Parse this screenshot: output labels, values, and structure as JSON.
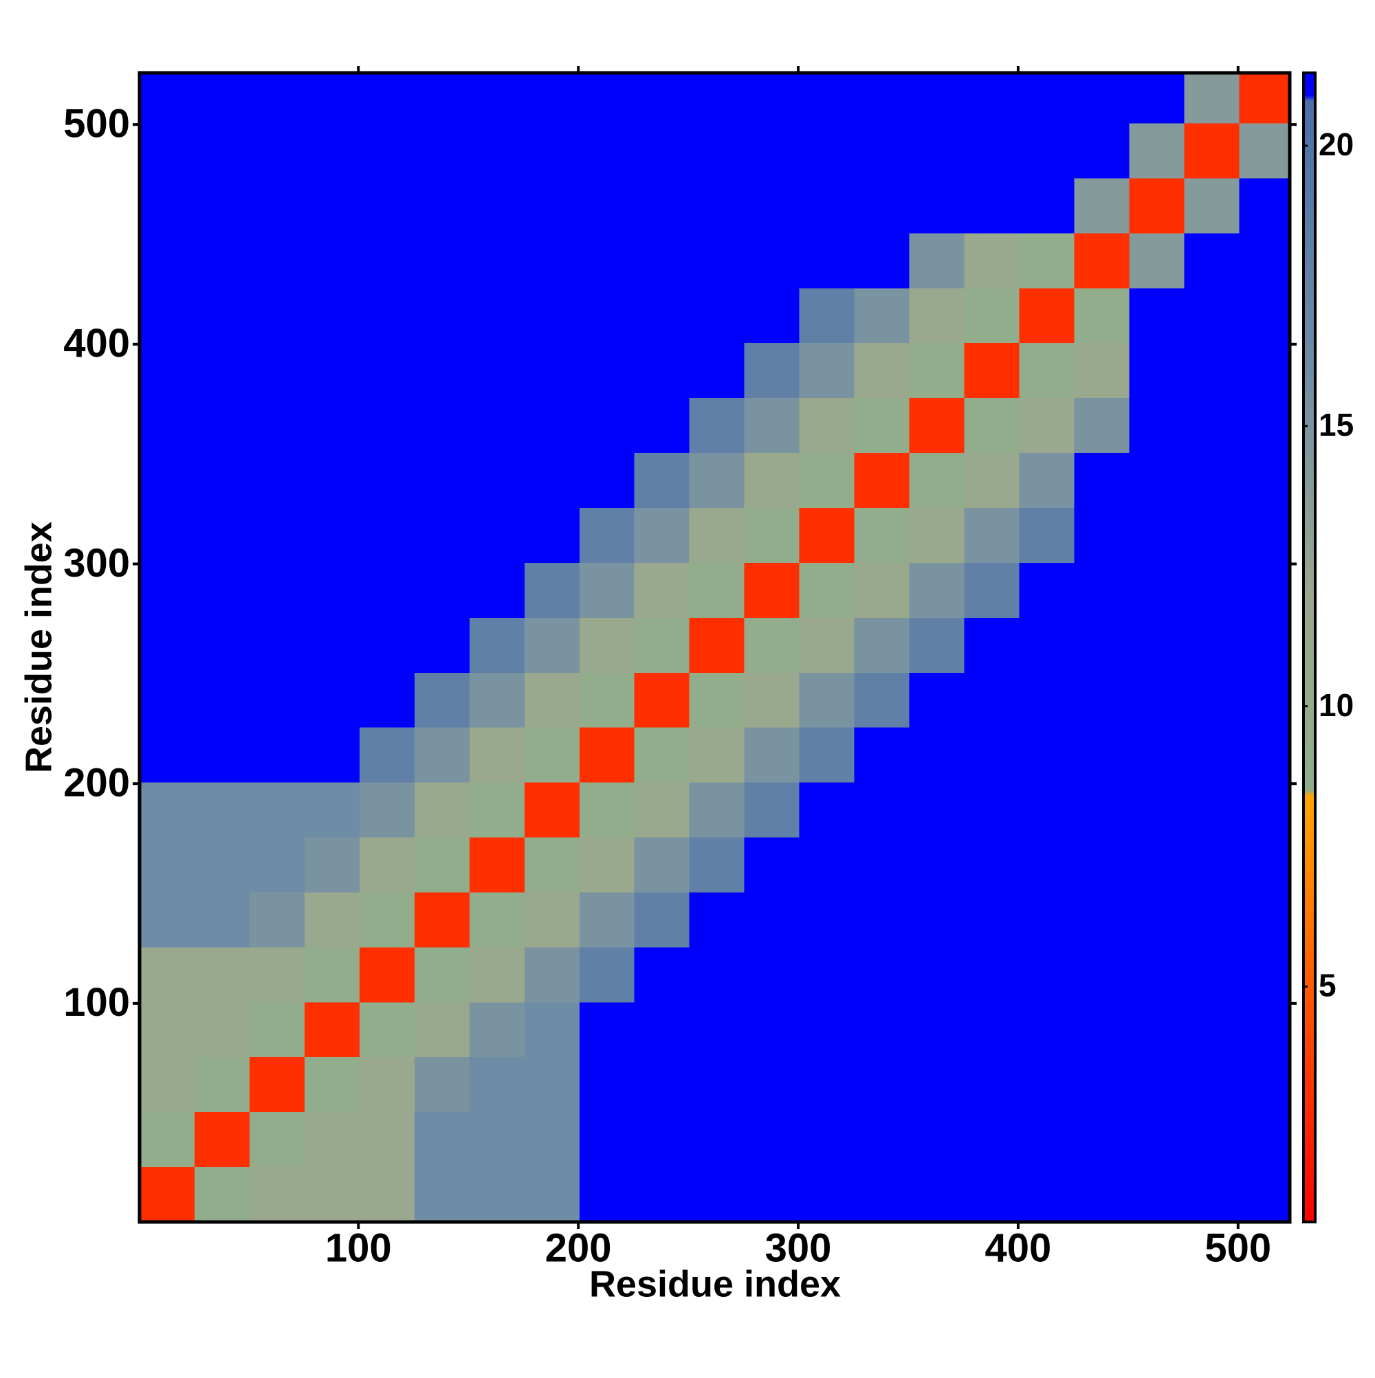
{
  "chart_data": {
    "type": "heatmap",
    "x_label": "Residue index",
    "y_label": "Residue index",
    "xlim": [
      0.5,
      523.5
    ],
    "ylim": [
      0.5,
      523.5
    ],
    "xticks": [
      100,
      200,
      300,
      400,
      500
    ],
    "yticks": [
      100,
      200,
      300,
      400,
      500
    ],
    "bins": [
      0.5,
      25.5,
      50.5,
      75.5,
      100.5,
      125.5,
      150.5,
      175.5,
      200.5,
      225.5,
      250.5,
      275.5,
      300.5,
      325.5,
      350.5,
      375.5,
      400.5,
      425.5,
      450.5,
      475.5,
      500.5,
      523.5
    ],
    "z": [
      [
        3,
        9,
        12,
        12,
        12,
        16,
        16,
        16,
        21,
        21,
        21,
        21,
        21,
        21,
        21,
        21,
        21,
        21,
        21,
        21,
        21
      ],
      [
        9,
        3,
        9,
        12,
        12,
        16,
        16,
        16,
        21,
        21,
        21,
        21,
        21,
        21,
        21,
        21,
        21,
        21,
        21,
        21,
        21
      ],
      [
        12,
        9,
        3,
        9,
        12,
        15,
        16,
        16,
        21,
        21,
        21,
        21,
        21,
        21,
        21,
        21,
        21,
        21,
        21,
        21,
        21
      ],
      [
        12,
        12,
        9,
        3,
        9,
        12,
        15,
        16,
        21,
        21,
        21,
        21,
        21,
        21,
        21,
        21,
        21,
        21,
        21,
        21,
        21
      ],
      [
        12,
        12,
        12,
        9,
        3,
        9,
        12,
        15,
        18,
        21,
        21,
        21,
        21,
        21,
        21,
        21,
        21,
        21,
        21,
        21,
        21
      ],
      [
        16,
        16,
        15,
        12,
        9,
        3,
        9,
        12,
        15,
        18,
        21,
        21,
        21,
        21,
        21,
        21,
        21,
        21,
        21,
        21,
        21
      ],
      [
        16,
        16,
        16,
        15,
        12,
        9,
        3,
        9,
        12,
        15,
        18,
        21,
        21,
        21,
        21,
        21,
        21,
        21,
        21,
        21,
        21
      ],
      [
        16,
        16,
        16,
        16,
        15,
        12,
        9,
        3,
        9,
        12,
        15,
        18,
        21,
        21,
        21,
        21,
        21,
        21,
        21,
        21,
        21
      ],
      [
        21,
        21,
        21,
        21,
        18,
        15,
        12,
        9,
        3,
        9,
        12,
        15,
        18,
        21,
        21,
        21,
        21,
        21,
        21,
        21,
        21
      ],
      [
        21,
        21,
        21,
        21,
        21,
        18,
        15,
        12,
        9,
        3,
        9,
        12,
        15,
        18,
        21,
        21,
        21,
        21,
        21,
        21,
        21
      ],
      [
        21,
        21,
        21,
        21,
        21,
        21,
        18,
        15,
        12,
        9,
        3,
        9,
        12,
        15,
        18,
        21,
        21,
        21,
        21,
        21,
        21
      ],
      [
        21,
        21,
        21,
        21,
        21,
        21,
        21,
        18,
        15,
        12,
        9,
        3,
        9,
        12,
        15,
        18,
        21,
        21,
        21,
        21,
        21
      ],
      [
        21,
        21,
        21,
        21,
        21,
        21,
        21,
        21,
        18,
        15,
        12,
        9,
        3,
        9,
        12,
        15,
        18,
        21,
        21,
        21,
        21
      ],
      [
        21,
        21,
        21,
        21,
        21,
        21,
        21,
        21,
        21,
        18,
        15,
        12,
        9,
        3,
        9,
        12,
        15,
        21,
        21,
        21,
        21
      ],
      [
        21,
        21,
        21,
        21,
        21,
        21,
        21,
        21,
        21,
        21,
        18,
        15,
        12,
        9,
        3,
        9,
        12,
        15,
        21,
        21,
        21
      ],
      [
        21,
        21,
        21,
        21,
        21,
        21,
        21,
        21,
        21,
        21,
        21,
        18,
        15,
        12,
        9,
        3,
        9,
        12,
        21,
        21,
        21
      ],
      [
        21,
        21,
        21,
        21,
        21,
        21,
        21,
        21,
        21,
        21,
        21,
        21,
        18,
        15,
        12,
        9,
        3,
        9,
        21,
        21,
        21
      ],
      [
        21,
        21,
        21,
        21,
        21,
        21,
        21,
        21,
        21,
        21,
        21,
        21,
        21,
        21,
        15,
        12,
        9,
        3,
        14,
        21,
        21
      ],
      [
        21,
        21,
        21,
        21,
        21,
        21,
        21,
        21,
        21,
        21,
        21,
        21,
        21,
        21,
        21,
        21,
        21,
        14,
        3,
        14,
        21
      ],
      [
        21,
        21,
        21,
        21,
        21,
        21,
        21,
        21,
        21,
        21,
        21,
        21,
        21,
        21,
        21,
        21,
        21,
        21,
        14,
        3,
        14
      ],
      [
        21,
        21,
        21,
        21,
        21,
        21,
        21,
        21,
        21,
        21,
        21,
        21,
        21,
        21,
        21,
        21,
        21,
        21,
        21,
        14,
        3
      ]
    ],
    "clim": [
      0.8,
      21.3
    ],
    "cticks": [
      5,
      10,
      15,
      20
    ],
    "colorscale": [
      [
        0.8,
        "#ff0000"
      ],
      [
        5,
        "#ff5a00"
      ],
      [
        8.4,
        "#ffa500"
      ],
      [
        8.5,
        "#8fae8a"
      ],
      [
        12,
        "#9aa88e"
      ],
      [
        16,
        "#6f8ca6"
      ],
      [
        20.8,
        "#4a6fa8"
      ],
      [
        20.9,
        "#0000ff"
      ],
      [
        21.3,
        "#0000ff"
      ]
    ]
  }
}
